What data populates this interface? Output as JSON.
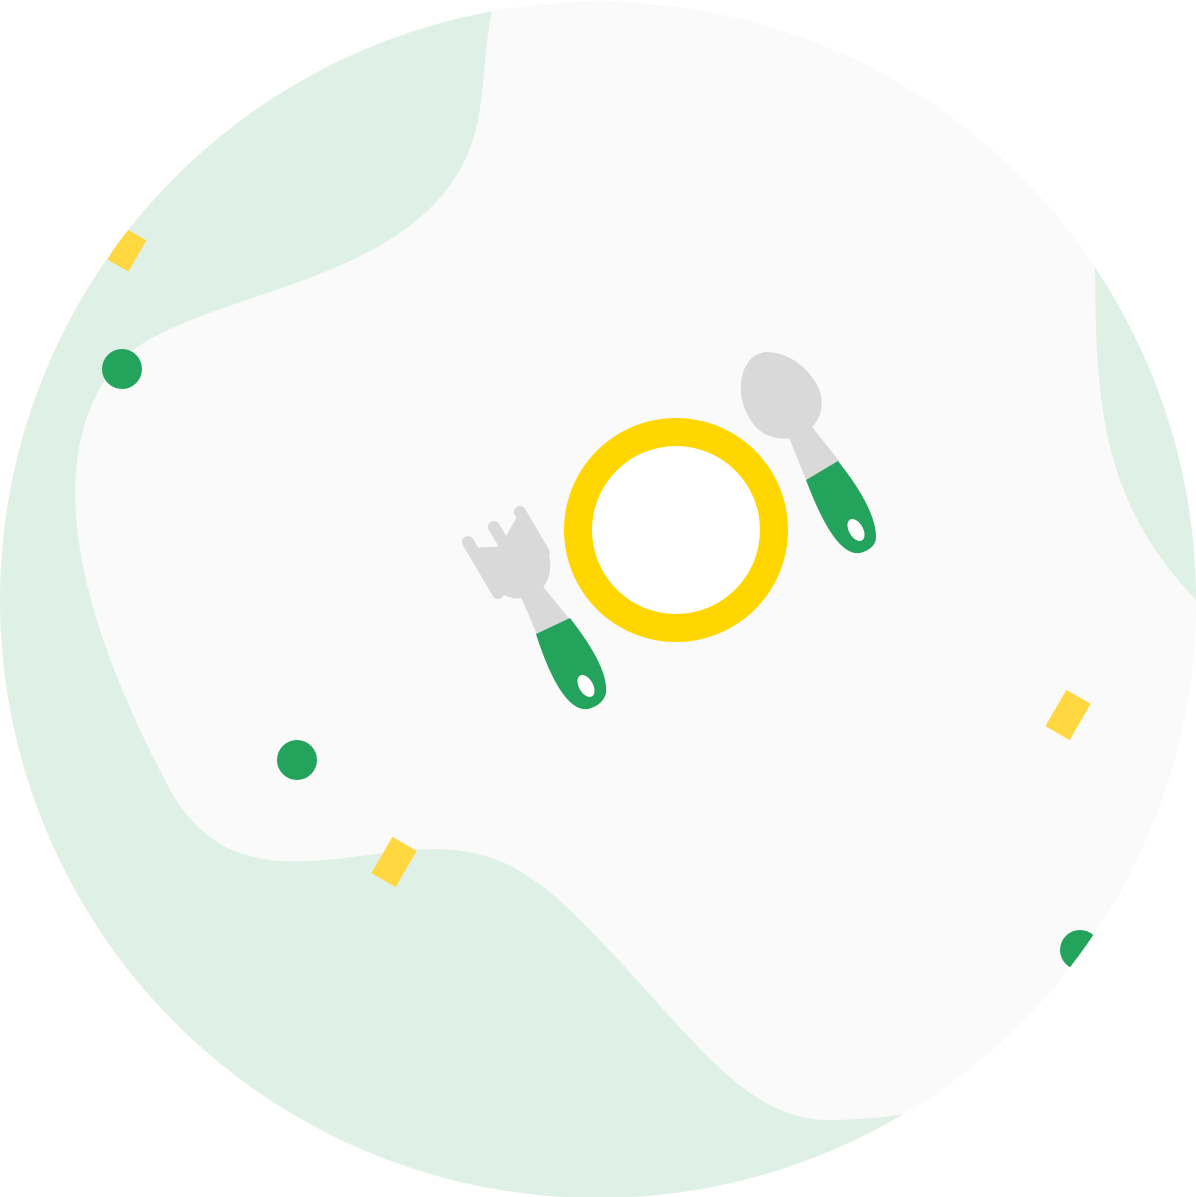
{
  "illustration": {
    "subject": "plate-with-fork-and-spoon",
    "icons": [
      "plate-icon",
      "fork-icon",
      "spoon-icon"
    ]
  },
  "colors": {
    "background": "#ffffff",
    "circle_fill": "#dff1e6",
    "blob_fill": "#fafafa",
    "plate_ring": "#ffd600",
    "plate_center": "#ffffff",
    "utensil_metal": "#d9d9d9",
    "utensil_handle": "#24a35c",
    "confetti_dot": "#24a35c",
    "confetti_square": "#ffd740"
  }
}
